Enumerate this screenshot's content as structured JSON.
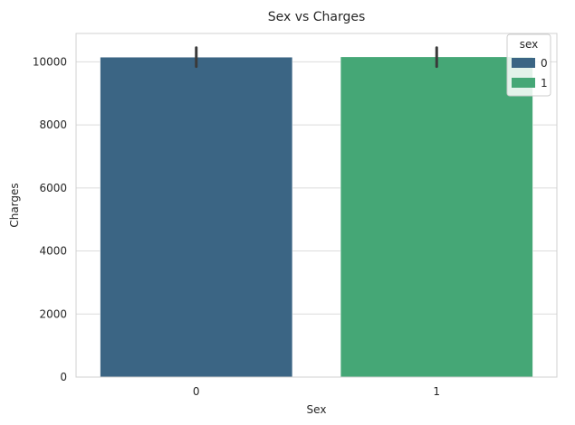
{
  "chart_data": {
    "type": "bar",
    "title": "Sex vs Charges",
    "xlabel": "Sex",
    "ylabel": "Charges",
    "categories": [
      "0",
      "1"
    ],
    "values": [
      10150,
      10160
    ],
    "error_bars": [
      [
        9850,
        10450
      ],
      [
        9850,
        10450
      ]
    ],
    "ylim": [
      0,
      10900
    ],
    "yticks": [
      0,
      2000,
      4000,
      6000,
      8000,
      10000
    ],
    "grid": "horizontal",
    "legend": {
      "title": "sex",
      "placement": "top-right",
      "entries": [
        "0",
        "1"
      ]
    },
    "colors": [
      "#3b6584",
      "#45a776"
    ]
  }
}
